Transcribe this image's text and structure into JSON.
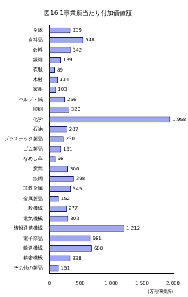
{
  "chart_data": {
    "type": "bar",
    "orientation": "horizontal",
    "title": "図16 1事業所当たり付加価値額",
    "x_label": "(万円/事業所)",
    "categories": [
      "全体",
      "食料品",
      "飲料",
      "繊維",
      "衣服",
      "木材",
      "家具",
      "パルプ・紙",
      "印刷",
      "化学",
      "石油",
      "プラスチック製品",
      "ゴム製品",
      "なめし革",
      "窯業",
      "鉄鋼",
      "非鉄金属",
      "金属製品",
      "一般機械",
      "電気機械",
      "情報通信機械",
      "電子部品",
      "輸送機械",
      "精密機械",
      "その他の製品"
    ],
    "values": [
      339,
      548,
      342,
      189,
      89,
      134,
      103,
      256,
      320,
      1958,
      287,
      230,
      191,
      96,
      300,
      398,
      345,
      152,
      277,
      303,
      1212,
      661,
      688,
      338,
      151
    ],
    "value_labels": [
      "339",
      "548",
      "342",
      "189",
      "89",
      "134",
      "103",
      "256",
      "320",
      "1,958",
      "287",
      "230",
      "191",
      "96",
      "300",
      "398",
      "345",
      "152",
      "277",
      "303",
      "1,212",
      "661",
      "688",
      "338",
      "151"
    ],
    "color": "#9fa8ec",
    "xlim": [
      0,
      2000
    ],
    "xticks": [
      0,
      500,
      {
        "value": 1000,
        "label": "1,000"
      },
      {
        "value": 1500,
        "label": "1,500"
      },
      {
        "value": 2000,
        "label": "2,000"
      }
    ],
    "grid": false,
    "data_labels": true
  }
}
